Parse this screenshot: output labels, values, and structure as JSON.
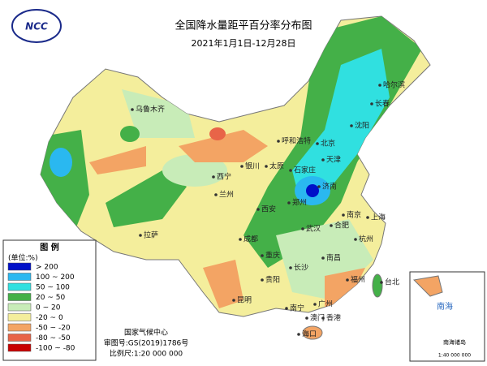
{
  "logo": "NCC",
  "title": "全国降水量距平百分率分布图",
  "subtitle": "2021年1月1日-12月28日",
  "legend": {
    "title": "图 例",
    "unit": "(单位:%)",
    "items": [
      {
        "label": "> 200",
        "color": "#0010c8"
      },
      {
        "label": "100 ~ 200",
        "color": "#2ab8f0"
      },
      {
        "label": "50 ~ 100",
        "color": "#30e0e0"
      },
      {
        "label": "20 ~ 50",
        "color": "#44b048"
      },
      {
        "label": "0 ~ 20",
        "color": "#c8ecb8"
      },
      {
        "label": "-20 ~ 0",
        "color": "#f4ee9c"
      },
      {
        "label": "-50 ~ -20",
        "color": "#f3a464"
      },
      {
        "label": "-80 ~ -50",
        "color": "#e86448"
      },
      {
        "label": "-100 ~ -80",
        "color": "#c80000"
      }
    ]
  },
  "footer": {
    "org": "国家气候中心",
    "review": "审图号:GS(2019)1786号",
    "scale": "比例尺:1:20 000 000"
  },
  "inset": {
    "sea": "南海",
    "islands": "南海诸岛",
    "scale": "1:40 000 000"
  },
  "cities": [
    "乌鲁木齐",
    "拉萨",
    "西宁",
    "兰州",
    "银川",
    "呼和浩特",
    "太原",
    "北京",
    "天津",
    "石家庄",
    "济南",
    "西安",
    "郑州",
    "成都",
    "重庆",
    "武汉",
    "合肥",
    "南京",
    "上海",
    "杭州",
    "长沙",
    "南昌",
    "福州",
    "台北",
    "贵阳",
    "昆明",
    "南宁",
    "广州",
    "香港",
    "澳门",
    "海口",
    "沈阳",
    "长春",
    "哈尔滨"
  ]
}
